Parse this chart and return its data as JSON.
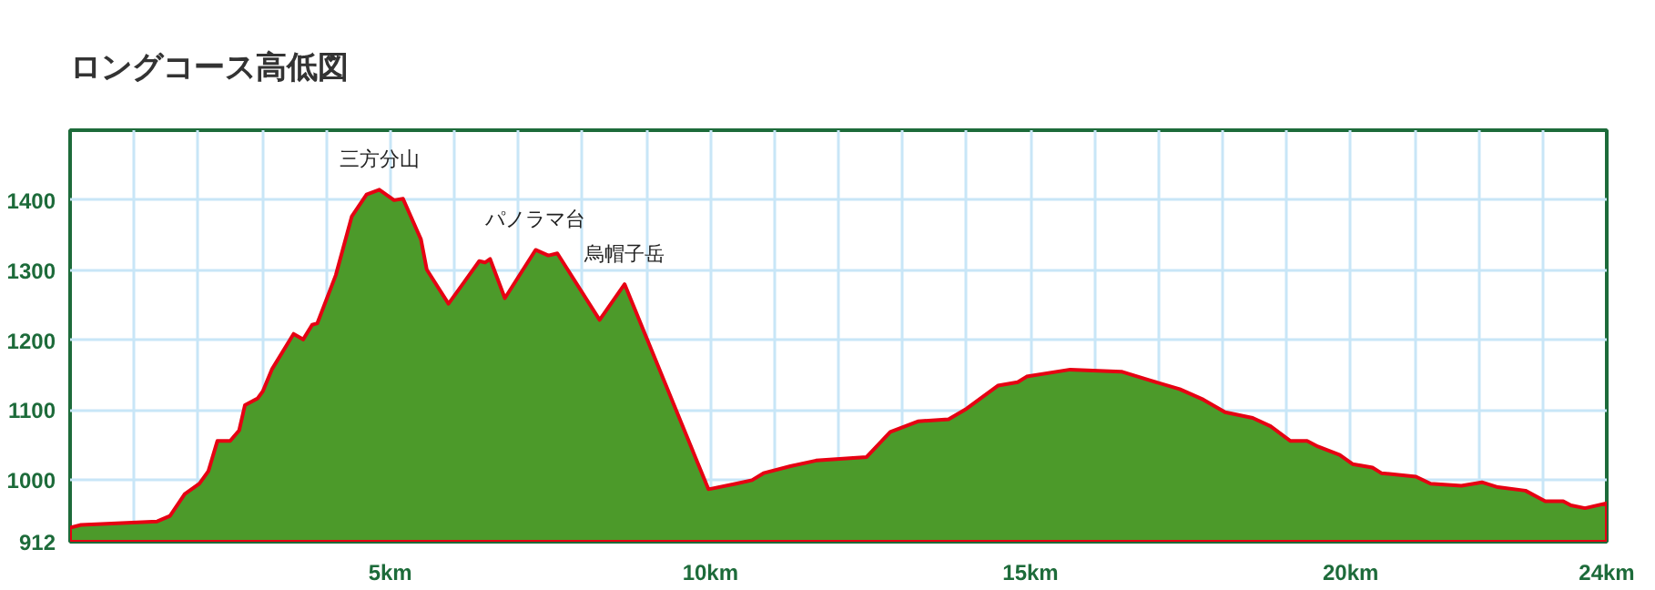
{
  "chart_data": {
    "type": "area",
    "title": "ロングコース高低図",
    "x": [
      0,
      0.17,
      1.36,
      1.56,
      1.79,
      2.02,
      2.16,
      2.3,
      2.5,
      2.64,
      2.73,
      2.93,
      3.01,
      3.15,
      3.49,
      3.64,
      3.78,
      3.86,
      4.15,
      4.4,
      4.63,
      4.83,
      5.06,
      5.2,
      5.48,
      5.57,
      5.91,
      6.39,
      6.48,
      6.56,
      6.79,
      7.27,
      7.47,
      7.61,
      8.27,
      8.66,
      9.97,
      10.4,
      10.65,
      10.83,
      11.25,
      11.65,
      12.44,
      12.81,
      13.24,
      13.72,
      14.0,
      14.49,
      14.8,
      14.94,
      15.62,
      16.42,
      16.85,
      17.33,
      17.7,
      18.04,
      18.47,
      18.75,
      19.06,
      19.32,
      19.49,
      19.83,
      20.03,
      20.34,
      20.48,
      21.02,
      21.25,
      21.73,
      22.05,
      22.3,
      22.73,
      23.04,
      23.32,
      23.44,
      23.66,
      24.0
    ],
    "series": [
      {
        "color": "#4c9a2a",
        "values": [
          932,
          936,
          941,
          949,
          980,
          995,
          1013,
          1056,
          1056,
          1071,
          1107,
          1117,
          1127,
          1158,
          1209,
          1201,
          1222,
          1224,
          1293,
          1377,
          1408,
          1415,
          1400,
          1402,
          1344,
          1301,
          1252,
          1313,
          1311,
          1316,
          1260,
          1329,
          1321,
          1324,
          1229,
          1280,
          987,
          995,
          1000,
          1010,
          1020,
          1028,
          1033,
          1069,
          1084,
          1087,
          1102,
          1135,
          1140,
          1148,
          1158,
          1155,
          1143,
          1130,
          1115,
          1097,
          1089,
          1077,
          1056,
          1056,
          1048,
          1036,
          1023,
          1018,
          1010,
          1005,
          995,
          992,
          997,
          990,
          985,
          970,
          970,
          964,
          960,
          967
        ]
      }
    ],
    "xlim": [
      0,
      24
    ],
    "ylim": [
      912,
      1500
    ],
    "xticks": [
      {
        "value": 1,
        "label": null
      },
      {
        "value": 2,
        "label": null
      },
      {
        "value": 3,
        "label": null
      },
      {
        "value": 4,
        "label": null
      },
      {
        "value": 5,
        "label": "5km"
      },
      {
        "value": 6,
        "label": null
      },
      {
        "value": 7,
        "label": null
      },
      {
        "value": 8,
        "label": null
      },
      {
        "value": 9,
        "label": null
      },
      {
        "value": 10,
        "label": "10km"
      },
      {
        "value": 11,
        "label": null
      },
      {
        "value": 12,
        "label": null
      },
      {
        "value": 13,
        "label": null
      },
      {
        "value": 14,
        "label": null
      },
      {
        "value": 15,
        "label": "15km"
      },
      {
        "value": 16,
        "label": null
      },
      {
        "value": 17,
        "label": null
      },
      {
        "value": 18,
        "label": null
      },
      {
        "value": 19,
        "label": null
      },
      {
        "value": 20,
        "label": "20km"
      },
      {
        "value": 21,
        "label": null
      },
      {
        "value": 22,
        "label": null
      },
      {
        "value": 23,
        "label": null
      },
      {
        "value": 24,
        "label": "24km"
      }
    ],
    "yticks": [
      912,
      1000,
      1100,
      1200,
      1300,
      1400
    ],
    "grid": true,
    "annotations": [
      {
        "text": "三方分山",
        "x": 4.83,
        "y": 1415
      },
      {
        "text": "パノラマ台",
        "x": 7.27,
        "y": 1329
      },
      {
        "text": "烏帽子岳",
        "x": 8.66,
        "y": 1280
      }
    ]
  }
}
